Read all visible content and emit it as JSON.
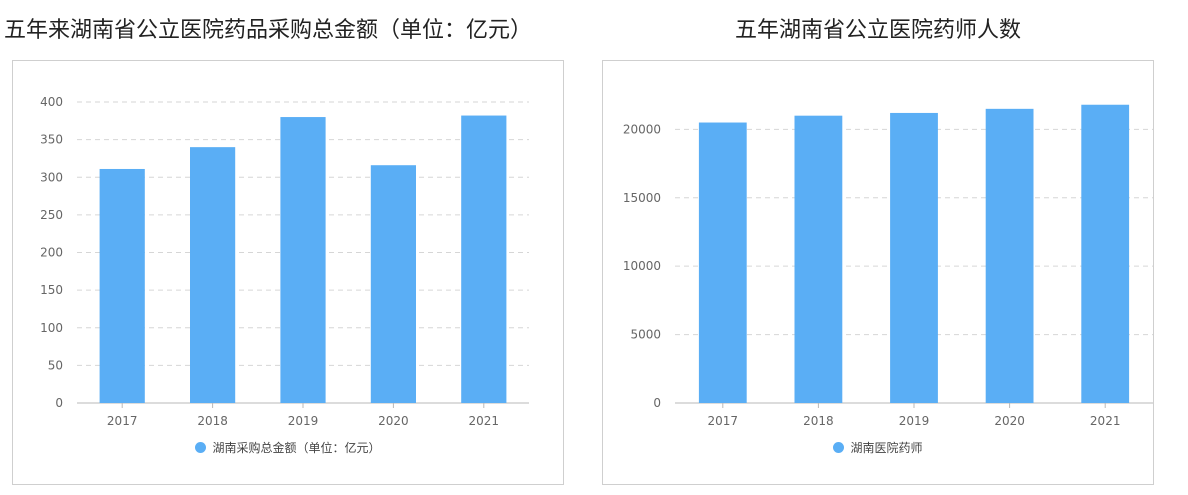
{
  "colors": {
    "bar": "#5aaef5",
    "grid": "#d6d6d6",
    "axis": "#b8b8b8",
    "tick": "#666666"
  },
  "chart_data": [
    {
      "type": "bar",
      "title": "五年来湖南省公立医院药品采购总金额（单位：亿元）",
      "categories": [
        "2017",
        "2018",
        "2019",
        "2020",
        "2021"
      ],
      "series": [
        {
          "name": "湖南采购总金额（单位：亿元）",
          "values": [
            311,
            340,
            380,
            316,
            382
          ]
        }
      ],
      "ylim": [
        0,
        400
      ],
      "yticks": [
        0,
        50,
        100,
        150,
        200,
        250,
        300,
        350,
        400
      ],
      "grid": true,
      "legend": "bottom-center"
    },
    {
      "type": "bar",
      "title": "五年湖南省公立医院药师人数",
      "categories": [
        "2017",
        "2018",
        "2019",
        "2020",
        "2021"
      ],
      "series": [
        {
          "name": "湖南医院药师",
          "values": [
            20500,
            21000,
            21200,
            21500,
            21800
          ]
        }
      ],
      "ylim": [
        0,
        22000
      ],
      "yticks": [
        0,
        5000,
        10000,
        15000,
        20000
      ],
      "grid": true,
      "legend": "bottom-center"
    }
  ]
}
